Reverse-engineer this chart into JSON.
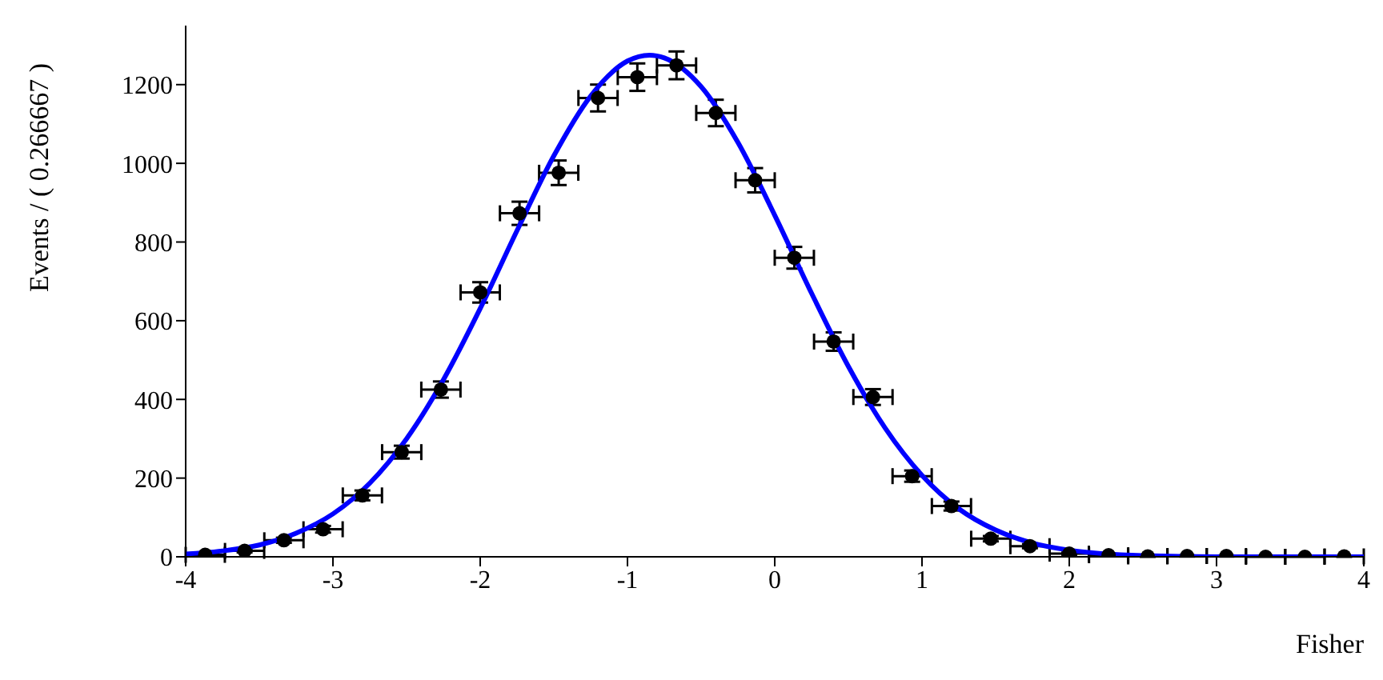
{
  "chart_data": {
    "type": "scatter",
    "xlabel": "Fisher",
    "ylabel": "Events / ( 0.266667 )",
    "xlim": [
      -4,
      4
    ],
    "xticks": [
      -4,
      -3,
      -2,
      -1,
      0,
      1,
      2,
      3,
      4
    ],
    "ylim": [
      0,
      1350
    ],
    "yticks": [
      0,
      200,
      400,
      600,
      800,
      1000,
      1200
    ],
    "series": [
      {
        "color": "#000000",
        "marker": "circle",
        "x": [
          -3.867,
          -3.6,
          -3.333,
          -3.067,
          -2.8,
          -2.533,
          -2.267,
          -2.0,
          -1.733,
          -1.467,
          -1.2,
          -0.933,
          -0.667,
          -0.4,
          -0.133,
          0.133,
          0.4,
          0.667,
          0.933,
          1.2,
          1.467,
          1.733,
          2.0,
          2.267,
          2.533,
          2.8,
          3.067,
          3.333,
          3.6,
          3.867
        ],
        "values": [
          5,
          15,
          42,
          70,
          156,
          266,
          425,
          672,
          873,
          976,
          1166,
          1219,
          1249,
          1128,
          957,
          760,
          547,
          406,
          205,
          129,
          46,
          27,
          8,
          4,
          1,
          2,
          2,
          0,
          0,
          1
        ],
        "errors": [
          2.2,
          3.9,
          6.5,
          8.4,
          12.5,
          16.3,
          20.6,
          25.9,
          29.5,
          31.2,
          34.1,
          34.9,
          35.3,
          33.6,
          30.9,
          27.6,
          23.4,
          20.1,
          14.3,
          11.4,
          6.8,
          5.2,
          2.8,
          2,
          1,
          1.4,
          1.4,
          null,
          null,
          1
        ],
        "xerrors": [
          0.133,
          0.133,
          0.133,
          0.133,
          0.133,
          0.133,
          0.133,
          0.133,
          0.133,
          0.133,
          0.133,
          0.133,
          0.133,
          0.133,
          0.133,
          0.133,
          0.133,
          0.133,
          0.133,
          0.133,
          0.133,
          0.133,
          0.133,
          0.133,
          0.133,
          0.133,
          0.133,
          0.133,
          0.133,
          0.133
        ]
      },
      {
        "type": "line",
        "color": "#0000ff",
        "marker": "none",
        "line_style": "solid",
        "x": [
          -4,
          -3.75,
          -3.5,
          -3.25,
          -3,
          -2.75,
          -2.5,
          -2.25,
          -2,
          -1.75,
          -1.5,
          -1.25,
          -1,
          -0.85,
          -0.75,
          -0.5,
          -0.25,
          0,
          0.25,
          0.5,
          0.75,
          1,
          1.25,
          1.5,
          1.75,
          2,
          2.5,
          3,
          4
        ],
        "values": [
          7,
          15,
          30,
          60,
          109,
          187,
          300,
          450,
          631,
          829,
          1019,
          1171,
          1260,
          1275,
          1268,
          1195,
          1053,
          868,
          670,
          484,
          327,
          207,
          122,
          68,
          35,
          17,
          3,
          0,
          0
        ]
      }
    ]
  }
}
